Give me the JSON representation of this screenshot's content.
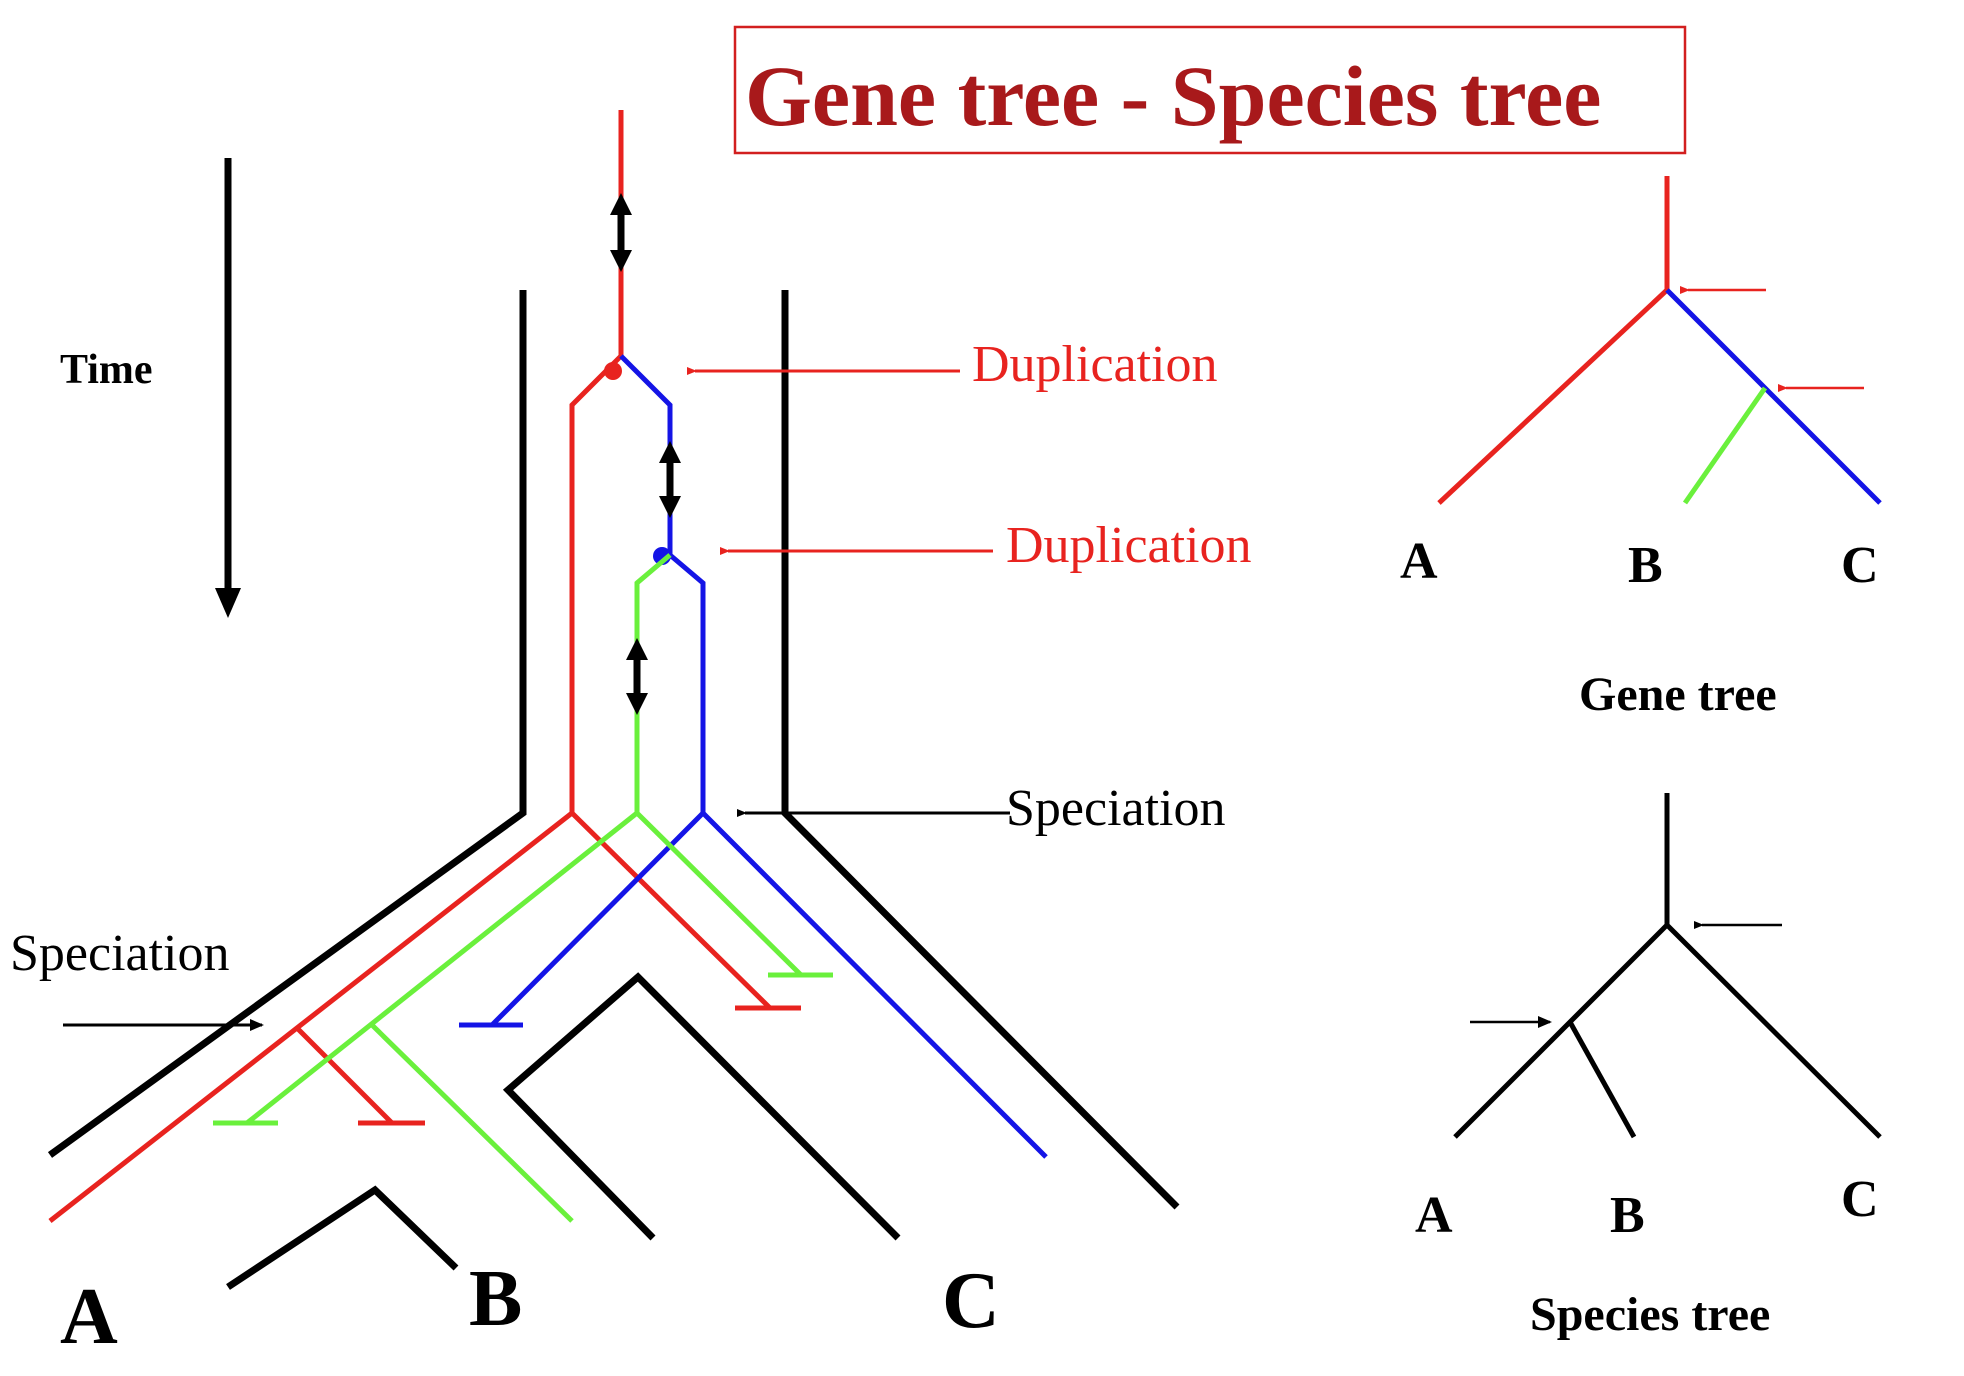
{
  "title": "Gene tree - Species tree",
  "labels": {
    "time": "Time",
    "duplication_1": "Duplication",
    "duplication_2": "Duplication",
    "speciation_right": "Speciation",
    "speciation_left": "Speciation"
  },
  "main_leaves": {
    "a": "A",
    "b": "B",
    "c": "C"
  },
  "gene_tree": {
    "caption": "Gene tree",
    "leaves": {
      "a": "A",
      "b": "B",
      "c": "C"
    }
  },
  "species_tree": {
    "caption": "Species tree",
    "leaves": {
      "a": "A",
      "b": "B",
      "c": "C"
    }
  },
  "colors": {
    "title": "#a8191b",
    "red": "#e8231f",
    "blue": "#1414e6",
    "green": "#6af03c",
    "black": "#000000"
  }
}
